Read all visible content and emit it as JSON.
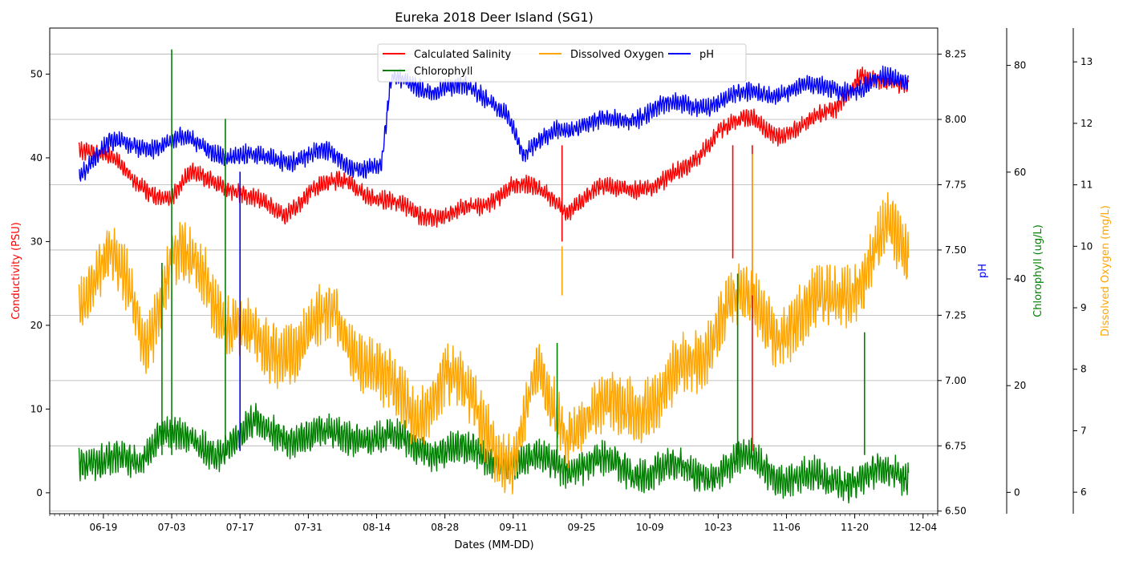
{
  "chart_data": {
    "type": "line",
    "title": "Eureka 2018 Deer Island (SG1)",
    "xlabel": "Dates (MM-DD)",
    "x_ticks": [
      "06-19",
      "07-03",
      "07-17",
      "07-31",
      "08-14",
      "08-28",
      "09-11",
      "09-25",
      "10-09",
      "10-23",
      "11-06",
      "11-20",
      "12-04"
    ],
    "xlim": [
      "2018-06-08",
      "2018-12-07"
    ],
    "grid": "horizontal",
    "legend": {
      "placement": "top-center",
      "entries": [
        {
          "label": "Calculated Salinity",
          "color": "#ff0000"
        },
        {
          "label": "Dissolved Oxygen",
          "color": "#ffa500"
        },
        {
          "label": "pH",
          "color": "#0000ff"
        },
        {
          "label": "Chlorophyll",
          "color": "#008000"
        }
      ]
    },
    "axes": [
      {
        "id": "salinity",
        "label": "Conductivity (PSU)",
        "color": "#ff0000",
        "side": "left",
        "ylim": [
          -2.5,
          55.5
        ],
        "ticks": [
          "0",
          "10",
          "20",
          "30",
          "40",
          "50"
        ]
      },
      {
        "id": "ph",
        "label": "pH",
        "color": "#0000ff",
        "side": "right",
        "ylim": [
          6.49,
          8.35
        ],
        "ticks": [
          "6.50",
          "6.75",
          "7.00",
          "7.25",
          "7.50",
          "7.75",
          "8.00",
          "8.25"
        ]
      },
      {
        "id": "chl",
        "label": "Chlorophyll (ug/L)",
        "color": "#008000",
        "side": "right",
        "ylim": [
          -4,
          87
        ],
        "ticks": [
          "0",
          "20",
          "40",
          "60",
          "80"
        ]
      },
      {
        "id": "do",
        "label": "Dissolved Oxygen (mg/L)",
        "color": "#ffa500",
        "side": "right",
        "ylim": [
          5.65,
          13.55
        ],
        "ticks": [
          "6",
          "7",
          "8",
          "9",
          "10",
          "11",
          "12",
          "13"
        ]
      }
    ],
    "series": [
      {
        "name": "Calculated Salinity",
        "axis": "salinity",
        "color": "#ff0000",
        "x": [
          "2018-06-14",
          "2018-06-20",
          "2018-06-26",
          "2018-07-03",
          "2018-07-07",
          "2018-07-12",
          "2018-07-19",
          "2018-07-26",
          "2018-08-01",
          "2018-08-08",
          "2018-08-14",
          "2018-08-22",
          "2018-08-28",
          "2018-09-04",
          "2018-09-11",
          "2018-09-18",
          "2018-09-22",
          "2018-09-28",
          "2018-10-05",
          "2018-10-12",
          "2018-10-17",
          "2018-10-23",
          "2018-10-30",
          "2018-11-04",
          "2018-11-09",
          "2018-11-16",
          "2018-11-21",
          "2018-11-26",
          "2018-12-01"
        ],
        "y": [
          41.5,
          40,
          37,
          35,
          38,
          37.5,
          35,
          33.5,
          36,
          37.5,
          35,
          33.5,
          33,
          34,
          37,
          35.5,
          34,
          36,
          36.5,
          37,
          39,
          43.5,
          44.5,
          43,
          43.5,
          46,
          50,
          48.5,
          49
        ]
      },
      {
        "name": "Dissolved Oxygen",
        "axis": "do",
        "color": "#ffa500",
        "x": [
          "2018-06-14",
          "2018-06-20",
          "2018-06-24",
          "2018-06-28",
          "2018-07-03",
          "2018-07-10",
          "2018-07-15",
          "2018-07-22",
          "2018-07-29",
          "2018-08-05",
          "2018-08-12",
          "2018-08-18",
          "2018-08-22",
          "2018-08-28",
          "2018-09-04",
          "2018-09-11",
          "2018-09-16",
          "2018-09-22",
          "2018-09-28",
          "2018-10-05",
          "2018-10-12",
          "2018-10-19",
          "2018-10-25",
          "2018-10-30",
          "2018-11-04",
          "2018-11-10",
          "2018-11-16",
          "2018-11-22",
          "2018-11-27",
          "2018-12-01"
        ],
        "y": [
          9.2,
          9.8,
          9.3,
          8.5,
          9.8,
          9.5,
          8.8,
          8.2,
          8.5,
          8.8,
          8.2,
          7.5,
          7.2,
          8,
          7.2,
          6.5,
          7.8,
          7.1,
          7.2,
          7.5,
          7.5,
          8.3,
          9,
          9,
          8.7,
          8.8,
          9.3,
          9.5,
          10.2,
          9.9
        ]
      },
      {
        "name": "pH",
        "axis": "ph",
        "color": "#0000ff",
        "x": [
          "2018-06-14",
          "2018-06-20",
          "2018-06-28",
          "2018-07-05",
          "2018-07-12",
          "2018-07-20",
          "2018-07-27",
          "2018-08-03",
          "2018-08-08",
          "2018-08-15",
          "2018-08-17",
          "2018-08-25",
          "2018-09-01",
          "2018-09-06",
          "2018-09-10",
          "2018-09-13",
          "2018-09-20",
          "2018-09-27",
          "2018-10-04",
          "2018-10-11",
          "2018-10-18",
          "2018-10-25",
          "2018-11-01",
          "2018-11-08",
          "2018-11-15",
          "2018-11-21",
          "2018-11-26",
          "2018-12-01"
        ],
        "y": [
          7.8,
          7.9,
          7.9,
          7.92,
          7.88,
          7.85,
          7.85,
          7.87,
          7.83,
          7.82,
          8.15,
          8.12,
          8.12,
          8.08,
          8.03,
          7.85,
          7.97,
          7.98,
          8.0,
          8.05,
          8.05,
          8.08,
          8.1,
          8.12,
          8.12,
          8.12,
          8.15,
          8.15
        ]
      },
      {
        "name": "Chlorophyll",
        "axis": "chl",
        "color": "#008000",
        "x": [
          "2018-06-14",
          "2018-06-20",
          "2018-06-26",
          "2018-07-01",
          "2018-07-06",
          "2018-07-12",
          "2018-07-20",
          "2018-07-27",
          "2018-08-03",
          "2018-08-10",
          "2018-08-15",
          "2018-08-22",
          "2018-08-28",
          "2018-09-04",
          "2018-09-11",
          "2018-09-18",
          "2018-09-25",
          "2018-10-02",
          "2018-10-09",
          "2018-10-16",
          "2018-10-23",
          "2018-10-30",
          "2018-11-06",
          "2018-11-13",
          "2018-11-20",
          "2018-11-27",
          "2018-12-01"
        ],
        "y": [
          7,
          5,
          6,
          12,
          9,
          8,
          12,
          11,
          10,
          11,
          10,
          9,
          8,
          7,
          5,
          6,
          5,
          5,
          4,
          4,
          4,
          6,
          3,
          2,
          3,
          3,
          3
        ]
      }
    ],
    "spikes": [
      {
        "series": "Chlorophyll",
        "x": "2018-07-03",
        "y": 83
      },
      {
        "series": "Chlorophyll",
        "x": "2018-07-01",
        "y": 43
      },
      {
        "series": "Chlorophyll",
        "x": "2018-07-14",
        "y": 70
      },
      {
        "series": "Chlorophyll",
        "x": "2018-09-20",
        "y": 28
      },
      {
        "series": "Chlorophyll",
        "x": "2018-10-27",
        "y": 41
      },
      {
        "series": "Chlorophyll",
        "x": "2018-11-22",
        "y": 30
      },
      {
        "series": "Calculated Salinity",
        "x": "2018-10-26",
        "y": 28
      },
      {
        "series": "Calculated Salinity",
        "x": "2018-10-30",
        "y": 5
      },
      {
        "series": "Calculated Salinity",
        "x": "2018-09-21",
        "y": 30
      },
      {
        "series": "Dissolved Oxygen",
        "x": "2018-09-21",
        "y": 10
      },
      {
        "series": "Dissolved Oxygen",
        "x": "2018-10-30",
        "y": 11.5
      },
      {
        "series": "pH",
        "x": "2018-07-17",
        "y": 6.73
      }
    ]
  }
}
